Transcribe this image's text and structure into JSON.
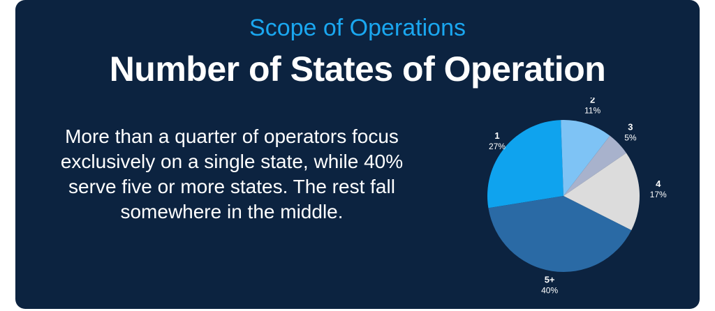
{
  "header": {
    "subtitle": "Scope of Operations",
    "title": "Number of States of Operation"
  },
  "body": {
    "text": "More than a quarter of operators focus exclusively on a single state, while 40% serve five or more states. The rest fall somewhere in the middle."
  },
  "chart_data": {
    "type": "pie",
    "categories": [
      "1",
      "2",
      "3",
      "4",
      "5+"
    ],
    "values": [
      27,
      11,
      5,
      17,
      40
    ],
    "value_labels": [
      "27%",
      "11%",
      "5%",
      "17%",
      "40%"
    ],
    "colors": [
      "#0fa3ee",
      "#7ec3f5",
      "#a8b2cc",
      "#dcdcdc",
      "#2a6aa5"
    ],
    "label_color": "#ffffff"
  }
}
